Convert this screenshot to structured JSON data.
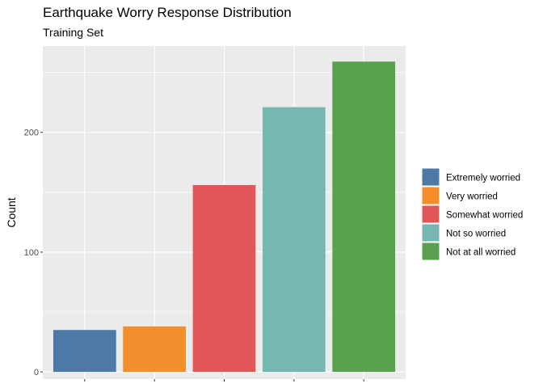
{
  "chart_data": {
    "type": "bar",
    "title": "Earthquake Worry Response Distribution",
    "subtitle": "Training Set",
    "xlabel": "",
    "ylabel": "Count",
    "categories": [
      "Extremely worried",
      "Very worried",
      "Somewhat worried",
      "Not so worried",
      "Not at all worried"
    ],
    "values": [
      35,
      38,
      156,
      221,
      259
    ],
    "colors": [
      "#4e79a7",
      "#f28e2b",
      "#e15759",
      "#76b7b2",
      "#59a14f"
    ],
    "ylim": [
      -6,
      272
    ],
    "yticks": [
      0,
      100,
      200
    ],
    "ytick_labels": [
      "0",
      "100",
      "200"
    ],
    "grid": true,
    "legend": {
      "position": "right",
      "entries": [
        "Extremely worried",
        "Very worried",
        "Somewhat worried",
        "Not so worried",
        "Not at all worried"
      ]
    }
  }
}
